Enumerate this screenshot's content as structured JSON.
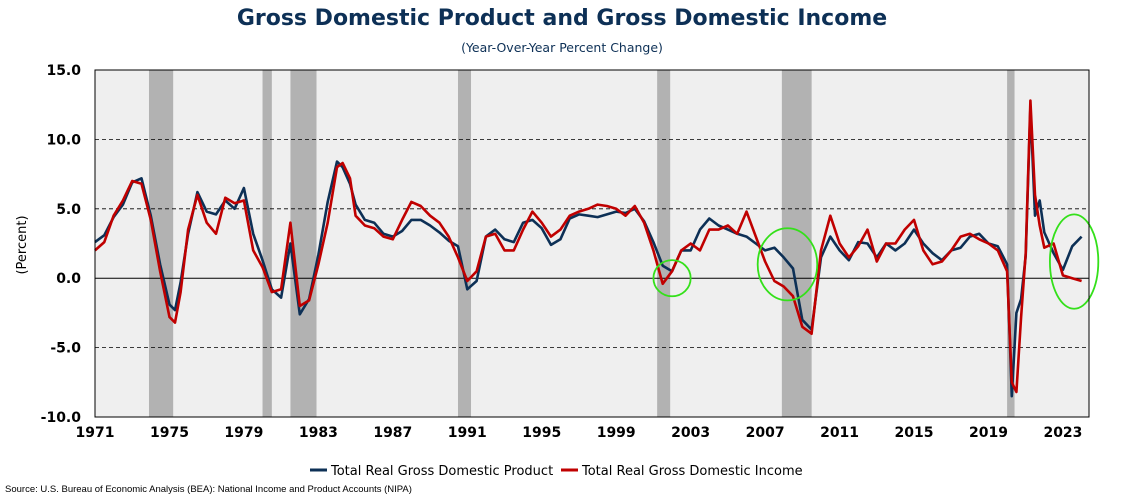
{
  "title": "Gross Domestic Product and Gross Domestic Income",
  "subtitle": "(Year-Over-Year Percent Change)",
  "source": "Source: U.S. Bureau of Economic Analysis (BEA): National Income and Product Accounts (NIPA)",
  "chart_data": {
    "type": "line",
    "ylabel": "(Percent)",
    "xlabel": "",
    "xlim": [
      1971,
      2024.4
    ],
    "ylim": [
      -10,
      15
    ],
    "y_ticks": [
      15.0,
      10.0,
      5.0,
      0.0,
      -5.0,
      -10.0
    ],
    "y_tick_labels": [
      "15.0",
      "10.0",
      "5.0",
      "0.0",
      "-5.0",
      "-10.0"
    ],
    "x_ticks": [
      1971,
      1975,
      1979,
      1983,
      1987,
      1991,
      1995,
      1999,
      2003,
      2007,
      2011,
      2015,
      2019,
      2023
    ],
    "x_tick_labels": [
      "1971",
      "1975",
      "1979",
      "1983",
      "1987",
      "1991",
      "1995",
      "1999",
      "2003",
      "2007",
      "2011",
      "2015",
      "2019",
      "2023"
    ],
    "grid": "horizontal-dashed",
    "legend_position": "bottom-center",
    "recessions": [
      [
        1973.9,
        1975.2
      ],
      [
        1980.0,
        1980.5
      ],
      [
        1981.5,
        1982.9
      ],
      [
        1990.5,
        1991.2
      ],
      [
        2001.2,
        2001.9
      ],
      [
        2007.9,
        2009.5
      ],
      [
        2020.0,
        2020.4
      ]
    ],
    "highlights": [
      {
        "x": 2002.0,
        "y": 0.0,
        "rx": 1.0,
        "ry": 1.3
      },
      {
        "x": 2008.2,
        "y": 1.0,
        "rx": 1.6,
        "ry": 2.6
      },
      {
        "x": 2023.6,
        "y": 1.2,
        "rx": 1.3,
        "ry": 3.4
      }
    ],
    "colors": {
      "plot_bg": "#efefef",
      "recession": "#b2b2b2",
      "highlight": "#34e01a"
    },
    "series": [
      {
        "name": "Total Real Gross Domestic Product",
        "color": "#0d3056",
        "x": [
          1971.0,
          1971.5,
          1972.0,
          1972.5,
          1973.0,
          1973.5,
          1974.0,
          1974.5,
          1975.0,
          1975.3,
          1975.6,
          1976.0,
          1976.5,
          1977.0,
          1977.5,
          1978.0,
          1978.5,
          1979.0,
          1979.5,
          1980.0,
          1980.5,
          1981.0,
          1981.5,
          1982.0,
          1982.5,
          1983.0,
          1983.5,
          1984.0,
          1984.3,
          1984.7,
          1985.0,
          1985.5,
          1986.0,
          1986.5,
          1987.0,
          1987.5,
          1988.0,
          1988.5,
          1989.0,
          1989.5,
          1990.0,
          1990.5,
          1991.0,
          1991.5,
          1992.0,
          1992.5,
          1993.0,
          1993.5,
          1994.0,
          1994.5,
          1995.0,
          1995.5,
          1996.0,
          1996.5,
          1997.0,
          1997.5,
          1998.0,
          1998.5,
          1999.0,
          1999.5,
          2000.0,
          2000.5,
          2001.0,
          2001.5,
          2002.0,
          2002.5,
          2003.0,
          2003.5,
          2004.0,
          2004.5,
          2005.0,
          2005.5,
          2006.0,
          2006.5,
          2007.0,
          2007.5,
          2008.0,
          2008.5,
          2009.0,
          2009.5,
          2010.0,
          2010.5,
          2011.0,
          2011.5,
          2012.0,
          2012.5,
          2013.0,
          2013.5,
          2014.0,
          2014.5,
          2015.0,
          2015.5,
          2016.0,
          2016.5,
          2017.0,
          2017.5,
          2018.0,
          2018.5,
          2019.0,
          2019.5,
          2020.0,
          2020.25,
          2020.5,
          2020.75,
          2021.0,
          2021.25,
          2021.5,
          2021.75,
          2022.0,
          2022.5,
          2023.0,
          2023.5,
          2024.0
        ],
        "values": [
          2.6,
          3.1,
          4.4,
          5.3,
          6.9,
          7.2,
          4.5,
          1.0,
          -1.9,
          -2.3,
          -0.3,
          3.2,
          6.2,
          4.8,
          4.6,
          5.6,
          5.0,
          6.5,
          3.2,
          1.3,
          -0.8,
          -1.4,
          2.5,
          -2.6,
          -1.5,
          1.7,
          5.5,
          8.4,
          8.0,
          6.8,
          5.3,
          4.2,
          4.0,
          3.2,
          3.0,
          3.4,
          4.2,
          4.2,
          3.8,
          3.3,
          2.7,
          2.3,
          -0.8,
          -0.2,
          3.0,
          3.5,
          2.8,
          2.6,
          4.0,
          4.2,
          3.6,
          2.4,
          2.8,
          4.3,
          4.6,
          4.5,
          4.4,
          4.6,
          4.8,
          4.7,
          5.0,
          4.1,
          2.6,
          0.9,
          0.5,
          2.0,
          2.0,
          3.5,
          4.3,
          3.8,
          3.5,
          3.2,
          3.0,
          2.5,
          2.0,
          2.2,
          1.5,
          0.7,
          -3.0,
          -3.7,
          1.5,
          3.0,
          2.0,
          1.3,
          2.6,
          2.5,
          1.5,
          2.5,
          2.0,
          2.5,
          3.5,
          2.5,
          1.8,
          1.3,
          2.0,
          2.2,
          3.0,
          3.2,
          2.5,
          2.3,
          1.0,
          -8.5,
          -2.5,
          -1.5,
          1.6,
          12.3,
          4.5,
          5.6,
          3.3,
          1.8,
          0.6,
          2.3,
          3.0
        ]
      },
      {
        "name": "Total Real Gross Domestic Income",
        "color": "#c00000",
        "x": [
          1971.0,
          1971.5,
          1972.0,
          1972.5,
          1973.0,
          1973.5,
          1974.0,
          1974.5,
          1975.0,
          1975.3,
          1975.6,
          1976.0,
          1976.5,
          1977.0,
          1977.5,
          1978.0,
          1978.5,
          1979.0,
          1979.5,
          1980.0,
          1980.5,
          1981.0,
          1981.5,
          1982.0,
          1982.5,
          1983.0,
          1983.5,
          1984.0,
          1984.3,
          1984.7,
          1985.0,
          1985.5,
          1986.0,
          1986.5,
          1987.0,
          1987.5,
          1988.0,
          1988.5,
          1989.0,
          1989.5,
          1990.0,
          1990.5,
          1991.0,
          1991.5,
          1992.0,
          1992.5,
          1993.0,
          1993.5,
          1994.0,
          1994.5,
          1995.0,
          1995.5,
          1996.0,
          1996.5,
          1997.0,
          1997.5,
          1998.0,
          1998.5,
          1999.0,
          1999.5,
          2000.0,
          2000.5,
          2001.0,
          2001.5,
          2002.0,
          2002.5,
          2003.0,
          2003.5,
          2004.0,
          2004.5,
          2005.0,
          2005.5,
          2006.0,
          2006.5,
          2007.0,
          2007.5,
          2008.0,
          2008.5,
          2009.0,
          2009.5,
          2010.0,
          2010.5,
          2011.0,
          2011.5,
          2012.0,
          2012.5,
          2013.0,
          2013.5,
          2014.0,
          2014.5,
          2015.0,
          2015.5,
          2016.0,
          2016.5,
          2017.0,
          2017.5,
          2018.0,
          2018.5,
          2019.0,
          2019.5,
          2020.0,
          2020.25,
          2020.5,
          2020.75,
          2021.0,
          2021.25,
          2021.5,
          2021.75,
          2022.0,
          2022.5,
          2023.0,
          2023.5,
          2024.0
        ],
        "values": [
          2.0,
          2.6,
          4.5,
          5.6,
          7.0,
          6.8,
          4.2,
          0.5,
          -2.8,
          -3.2,
          -1.0,
          3.5,
          6.0,
          4.0,
          3.2,
          5.8,
          5.4,
          5.6,
          2.0,
          0.8,
          -1.0,
          -0.8,
          4.0,
          -2.0,
          -1.6,
          1.0,
          4.0,
          8.0,
          8.3,
          7.2,
          4.5,
          3.8,
          3.6,
          3.0,
          2.8,
          4.2,
          5.5,
          5.2,
          4.5,
          4.0,
          3.0,
          1.5,
          -0.2,
          0.5,
          3.0,
          3.2,
          2.0,
          2.0,
          3.5,
          4.8,
          4.0,
          3.0,
          3.5,
          4.5,
          4.8,
          5.0,
          5.3,
          5.2,
          5.0,
          4.5,
          5.2,
          4.0,
          2.0,
          -0.4,
          0.5,
          2.0,
          2.5,
          2.0,
          3.5,
          3.5,
          3.8,
          3.2,
          4.8,
          3.0,
          1.2,
          -0.2,
          -0.6,
          -1.3,
          -3.5,
          -4.0,
          2.0,
          4.5,
          2.5,
          1.5,
          2.3,
          3.5,
          1.2,
          2.5,
          2.5,
          3.5,
          4.2,
          2.0,
          1.0,
          1.2,
          2.0,
          3.0,
          3.2,
          2.8,
          2.5,
          2.0,
          0.5,
          -7.5,
          -8.2,
          -2.8,
          1.8,
          12.8,
          6.0,
          3.8,
          2.2,
          2.5,
          0.2,
          0.0,
          -0.2
        ]
      }
    ]
  }
}
